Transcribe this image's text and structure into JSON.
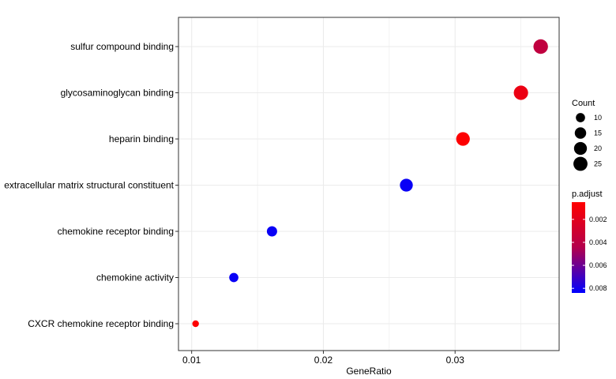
{
  "chart_data": {
    "type": "scatter",
    "xlabel": "GeneRatio",
    "ylabel": "",
    "xlim": [
      0.009,
      0.0379
    ],
    "x_ticks": [
      0.01,
      0.02,
      0.03
    ],
    "x_tick_labels": [
      "0.01",
      "0.02",
      "0.03"
    ],
    "grid": true,
    "categories": [
      "sulfur compound binding",
      "glycosaminoglycan binding",
      "heparin binding",
      "extracellular matrix structural constituent",
      "chemokine receptor binding",
      "chemokine activity",
      "CXCR chemokine receptor binding"
    ],
    "points": [
      {
        "term": "sulfur compound binding",
        "x": 0.0365,
        "count": 27,
        "p_adjust": 0.0038
      },
      {
        "term": "glycosaminoglycan binding",
        "x": 0.035,
        "count": 26,
        "p_adjust": 0.0015
      },
      {
        "term": "heparin binding",
        "x": 0.0306,
        "count": 23,
        "p_adjust": 0.0006
      },
      {
        "term": "extracellular matrix structural constituent",
        "x": 0.0263,
        "count": 20,
        "p_adjust": 0.0082
      },
      {
        "term": "chemokine receptor binding",
        "x": 0.0161,
        "count": 12,
        "p_adjust": 0.0082
      },
      {
        "term": "chemokine activity",
        "x": 0.0132,
        "count": 10,
        "p_adjust": 0.0082
      },
      {
        "term": "CXCR chemokine receptor binding",
        "x": 0.0103,
        "count": 8,
        "p_adjust": 0.0006
      }
    ],
    "legend_count": {
      "title": "Count",
      "values": [
        10,
        15,
        20,
        25
      ],
      "labels": [
        "10",
        "15",
        "20",
        "25"
      ]
    },
    "legend_color": {
      "title": "p.adjust",
      "range": [
        0.0005,
        0.0084
      ],
      "ticks": [
        0.002,
        0.004,
        0.006,
        0.008
      ],
      "labels": [
        "0.002",
        "0.004",
        "0.006",
        "0.008"
      ],
      "low_color": "#ff0000",
      "high_color": "#0000ff"
    },
    "legend_position": "right",
    "colors": {
      "panel_border": "#333333",
      "grid": "#ebebeb",
      "point_black": "#000000"
    }
  }
}
